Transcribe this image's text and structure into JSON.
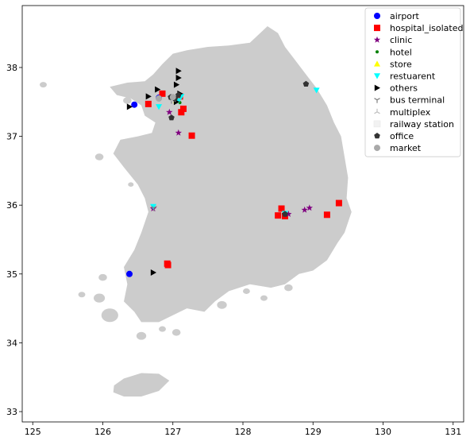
{
  "chart_data": {
    "type": "scatter",
    "title": "",
    "xlabel": "",
    "ylabel": "",
    "xlim": [
      124.85,
      131.15
    ],
    "ylim": [
      32.85,
      38.9
    ],
    "xticks": [
      125,
      126,
      127,
      128,
      129,
      130,
      131
    ],
    "yticks": [
      33,
      34,
      35,
      36,
      37,
      38
    ],
    "grid": false,
    "legend_position": "top-right",
    "basemap": {
      "name": "South Korea",
      "fill": "#cccccc"
    },
    "series": [
      {
        "name": "airport",
        "marker": "circle",
        "color": "#0000ff",
        "points": [
          [
            126.45,
            37.46
          ],
          [
            126.8,
            37.56
          ],
          [
            126.38,
            35.0
          ]
        ]
      },
      {
        "name": "hospital_isolated",
        "marker": "square",
        "color": "#ff0000",
        "points": [
          [
            126.85,
            37.62
          ],
          [
            126.65,
            37.47
          ],
          [
            127.1,
            37.58
          ],
          [
            127.15,
            37.4
          ],
          [
            127.12,
            37.35
          ],
          [
            127.27,
            37.01
          ],
          [
            126.92,
            35.15
          ],
          [
            126.93,
            35.13
          ],
          [
            128.55,
            35.95
          ],
          [
            128.5,
            35.85
          ],
          [
            128.6,
            35.84
          ],
          [
            129.2,
            35.86
          ],
          [
            129.37,
            36.03
          ]
        ]
      },
      {
        "name": "clinic",
        "marker": "star",
        "color": "#800080",
        "points": [
          [
            126.95,
            37.35
          ],
          [
            127.08,
            37.05
          ],
          [
            126.72,
            35.95
          ],
          [
            128.88,
            35.93
          ],
          [
            128.95,
            35.96
          ],
          [
            128.65,
            35.87
          ]
        ]
      },
      {
        "name": "hotel",
        "marker": "point",
        "color": "#008000",
        "points": [
          [
            127.02,
            37.56
          ],
          [
            127.1,
            37.49
          ]
        ]
      },
      {
        "name": "store",
        "marker": "triangle-up",
        "color": "#ffff00",
        "points": [
          [
            127.05,
            37.52
          ]
        ]
      },
      {
        "name": "restuarent",
        "marker": "triangle-down",
        "color": "#00ffff",
        "points": [
          [
            126.8,
            37.43
          ],
          [
            127.08,
            37.52
          ],
          [
            127.12,
            37.58
          ],
          [
            126.72,
            35.98
          ],
          [
            129.05,
            37.67
          ],
          [
            128.6,
            35.88
          ]
        ]
      },
      {
        "name": "others",
        "marker": "triangle-right",
        "color": "#000000",
        "points": [
          [
            127.08,
            37.95
          ],
          [
            127.08,
            37.85
          ],
          [
            127.05,
            37.75
          ],
          [
            126.78,
            37.68
          ],
          [
            126.65,
            37.58
          ],
          [
            126.38,
            37.43
          ],
          [
            127.05,
            37.5
          ],
          [
            127.1,
            37.62
          ],
          [
            126.72,
            35.02
          ]
        ]
      },
      {
        "name": "bus terminal",
        "marker": "tri-down",
        "color": "#808080",
        "points": [
          [
            126.98,
            37.52
          ],
          [
            126.73,
            35.96
          ]
        ]
      },
      {
        "name": "multiplex",
        "marker": "tri-up",
        "color": "#c0c0c0",
        "points": [
          [
            127.0,
            37.53
          ]
        ]
      },
      {
        "name": "railway station",
        "marker": "square-light",
        "color": "#f2f2f2",
        "points": []
      },
      {
        "name": "office",
        "marker": "pentagon",
        "color": "#333333",
        "points": [
          [
            126.97,
            37.57
          ],
          [
            127.03,
            37.55
          ],
          [
            126.98,
            37.27
          ],
          [
            128.9,
            37.76
          ],
          [
            128.6,
            35.87
          ],
          [
            127.08,
            37.6
          ]
        ]
      },
      {
        "name": "market",
        "marker": "circle",
        "color": "#a9a9a9",
        "points": [
          [
            127.0,
            37.57
          ],
          [
            126.8,
            37.55
          ]
        ]
      }
    ]
  }
}
